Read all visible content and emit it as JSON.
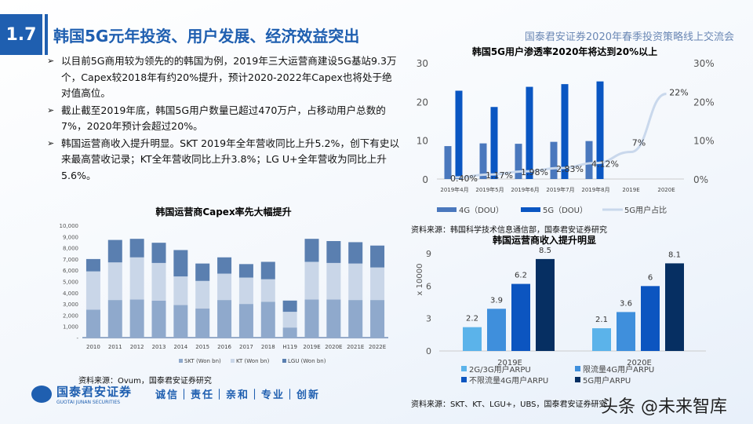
{
  "header": {
    "section": "1.7",
    "title": "韩国5G元年投资、用户发展、经济效益突出",
    "org": "国泰君安证券2020年春季投资策略线上交流会"
  },
  "bullets": [
    "以目前5G商用较为领先的的韩国为例，2019年三大运营商建设5G基站9.3万个，Capex较2018年有约20%提升，预计2020-2022年Capex也将处于绝对值高位。",
    "截止截至2019年底，韩国5G用户数量已超过470万户，占移动用户总数的7%，2020年预计会超过20%。",
    "韩国运营商收入提升明显。SKT 2019年全年营收同比上升5.2%，创下有史以来最高营收记录；KT全年营收同比上升3.8%；LG U+全年营收为同比上升5.6%。"
  ],
  "sources": {
    "capex": "资料来源：Ovum，国泰君安证券研究",
    "penetration": "资料来源：韩国科学技术信息通信部，国泰君安证券研究",
    "arpu": "资料来源：SKT、KT、LGU+，UBS，国泰君安证券研究"
  },
  "footer": {
    "logo_cn": "国泰君安证券",
    "logo_en": "GUOTAI JUNAN SECURITIES",
    "slogan": "诚信｜责任｜亲和｜专业｜创新",
    "watermark": "头条 @未来智库"
  },
  "chart_data": [
    {
      "type": "bar",
      "stacked": true,
      "title": "韩国运营商Capex率先大幅提升",
      "categories": [
        "2010",
        "2011",
        "2012",
        "2013",
        "2014",
        "2015",
        "2016",
        "2017",
        "2018",
        "H119",
        "2019E",
        "2020E",
        "2021E",
        "2022E"
      ],
      "ylim": [
        0,
        10000
      ],
      "yticks": [
        "-",
        "1,000",
        "2,000",
        "3,000",
        "4,000",
        "5,000",
        "6,000",
        "7,000",
        "8,000",
        "9,000",
        "10,000"
      ],
      "legend": "bottom",
      "series": [
        {
          "name": "SKT (Won bn)",
          "color": "#8fa9cc",
          "values": [
            2500,
            3350,
            3400,
            3300,
            2900,
            2600,
            3350,
            3000,
            3200,
            900,
            3400,
            3400,
            3350,
            3350
          ]
        },
        {
          "name": "KT (Won bn)",
          "color": "#c9d6e8",
          "values": [
            3400,
            3350,
            3750,
            3350,
            2550,
            2450,
            2350,
            2350,
            2000,
            1400,
            3350,
            3250,
            3250,
            2900
          ]
        },
        {
          "name": "LGU (Won bn)",
          "color": "#5a7fb0",
          "values": [
            1100,
            2000,
            1650,
            1800,
            2350,
            1550,
            1450,
            1200,
            1550,
            1000,
            2050,
            1950,
            1900,
            1950
          ]
        }
      ]
    },
    {
      "type": "bar+line",
      "title": "韩国5G用户渗透率2020年将达到20%以上",
      "categories": [
        "2019年4月",
        "2019年5月",
        "2019年6月",
        "2019年7月",
        "2019年8月",
        "2019E",
        "2020E"
      ],
      "ylim": [
        0,
        30
      ],
      "yticks": [
        "0",
        "10",
        "20",
        "30"
      ],
      "y2lim": [
        0,
        30
      ],
      "y2ticks": [
        "0%",
        "10%",
        "20%",
        "30%"
      ],
      "legend": "bottom",
      "series": [
        {
          "name": "4G（DOU）",
          "color": "#4a78bd",
          "values": [
            8.5,
            9.2,
            9.1,
            9.6,
            9.8,
            null,
            null
          ]
        },
        {
          "name": "5G（DOU）",
          "color": "#0a56c2",
          "values": [
            22.8,
            18.6,
            23.8,
            24.5,
            25.2,
            null,
            null
          ]
        },
        {
          "name": "5G用户占比",
          "color": "#c9d8ec",
          "axis": "right",
          "values": [
            0.4,
            1.17,
            1.98,
            2.83,
            4.12,
            7,
            22
          ],
          "labels": [
            "0.40%",
            "1.17%",
            "1.98%",
            "2.83%",
            "4.12%",
            "7%",
            "22%"
          ]
        }
      ]
    },
    {
      "type": "bar",
      "title": "韩国运营商收入提升明显",
      "ylabel": "x 10000",
      "categories": [
        "2019E",
        "2020E"
      ],
      "ylim": [
        0,
        9
      ],
      "yticks": [
        "0",
        "3",
        "6",
        "9"
      ],
      "legend": "bottom",
      "series": [
        {
          "name": "2G/3G用户ARPU",
          "color": "#5bb3ea",
          "values": [
            2.2,
            2.1
          ]
        },
        {
          "name": "限流量4G用户ARPU",
          "color": "#3f8fdc",
          "values": [
            3.9,
            3.6
          ]
        },
        {
          "name": "不限流量4G用户ARPU",
          "color": "#0c55c0",
          "values": [
            6.2,
            6
          ]
        },
        {
          "name": "5G用户ARPU",
          "color": "#062f62",
          "values": [
            8.5,
            8.1
          ]
        }
      ]
    }
  ]
}
